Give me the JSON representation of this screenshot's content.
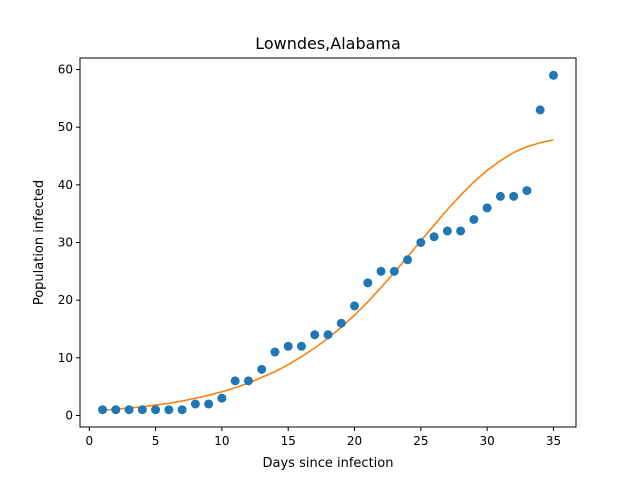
{
  "chart_data": {
    "type": "scatter",
    "title": "Lowndes,Alabama",
    "xlabel": "Days since infection",
    "ylabel": "Population infected",
    "xlim": [
      -0.7,
      36.7
    ],
    "ylim": [
      -2.0,
      62.0
    ],
    "xticks": [
      0,
      5,
      10,
      15,
      20,
      25,
      30,
      35
    ],
    "yticks": [
      0,
      10,
      20,
      30,
      40,
      50,
      60
    ],
    "grid": false,
    "colors": {
      "observed": "#1f77b4",
      "fit": "#ff7f0e"
    },
    "observed": {
      "x": [
        1,
        2,
        3,
        4,
        5,
        6,
        7,
        8,
        9,
        10,
        11,
        12,
        13,
        14,
        15,
        16,
        17,
        18,
        19,
        20,
        21,
        22,
        23,
        24,
        25,
        26,
        27,
        28,
        29,
        30,
        31,
        32,
        33,
        34,
        35
      ],
      "y": [
        1,
        1,
        1,
        1,
        1,
        1,
        1,
        2,
        2,
        3,
        6,
        6,
        8,
        11,
        12,
        12,
        14,
        14,
        16,
        19,
        23,
        25,
        25,
        27,
        30,
        31,
        32,
        32,
        34,
        36,
        38,
        38,
        39,
        53,
        59
      ]
    },
    "fit": {
      "x": [
        1,
        2,
        3,
        4,
        5,
        6,
        7,
        8,
        9,
        10,
        11,
        12,
        13,
        14,
        15,
        16,
        17,
        18,
        19,
        20,
        21,
        22,
        23,
        24,
        25,
        26,
        27,
        28,
        29,
        30,
        31,
        32,
        33,
        34,
        35
      ],
      "y": [
        0.9,
        1.1,
        1.3,
        1.5,
        1.8,
        2.1,
        2.5,
        3.0,
        3.5,
        4.1,
        4.8,
        5.6,
        6.6,
        7.6,
        8.8,
        10.2,
        11.7,
        13.4,
        15.3,
        17.4,
        19.7,
        22.2,
        24.8,
        27.5,
        30.3,
        33.0,
        35.7,
        38.2,
        40.5,
        42.5,
        44.2,
        45.6,
        46.6,
        47.3,
        47.8
      ]
    }
  }
}
